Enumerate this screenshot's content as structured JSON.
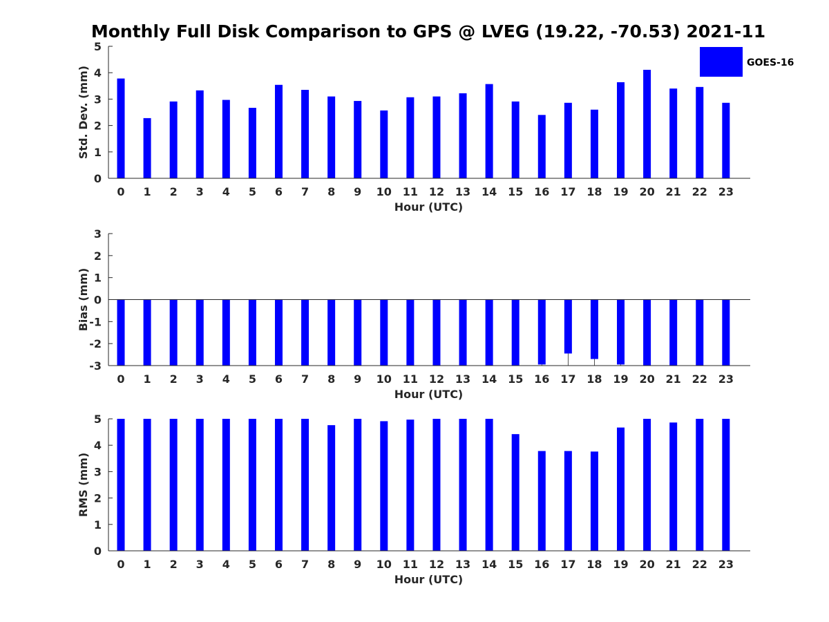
{
  "chart_data": {
    "title": "Monthly Full Disk Comparison to GPS @ LVEG (19.22, -70.53) 2021-11",
    "legend": {
      "entries": [
        "GOES-16"
      ],
      "placement": "top-right"
    },
    "colors": {
      "bar": "#0000ff",
      "axis": "#262626"
    },
    "grid": false,
    "panels": [
      {
        "type": "bar",
        "xlabel": "Hour (UTC)",
        "ylabel": "Std. Dev. (mm)",
        "ylim": [
          0,
          5
        ],
        "yticks": [
          "0",
          "1",
          "2",
          "3",
          "4",
          "5"
        ],
        "categories": [
          "0",
          "1",
          "2",
          "3",
          "4",
          "5",
          "6",
          "7",
          "8",
          "9",
          "10",
          "11",
          "12",
          "13",
          "14",
          "15",
          "16",
          "17",
          "18",
          "19",
          "20",
          "21",
          "22",
          "23"
        ],
        "series": [
          {
            "name": "GOES-16",
            "values": [
              3.78,
              2.28,
              2.91,
              3.33,
              2.97,
              2.67,
              3.54,
              3.35,
              3.1,
              2.93,
              2.57,
              3.07,
              3.1,
              3.22,
              3.57,
              2.91,
              2.4,
              2.86,
              2.6,
              3.64,
              4.11,
              3.4,
              3.46,
              2.86
            ]
          }
        ]
      },
      {
        "type": "bar",
        "xlabel": "Hour (UTC)",
        "ylabel": "Bias (mm)",
        "ylim": [
          -3,
          3
        ],
        "yticks": [
          "-3",
          "-2",
          "-1",
          "0",
          "1",
          "2",
          "3"
        ],
        "categories": [
          "0",
          "1",
          "2",
          "3",
          "4",
          "5",
          "6",
          "7",
          "8",
          "9",
          "10",
          "11",
          "12",
          "13",
          "14",
          "15",
          "16",
          "17",
          "18",
          "19",
          "20",
          "21",
          "22",
          "23"
        ],
        "series": [
          {
            "name": "GOES-16",
            "values": [
              -3,
              -3,
              -3,
              -3,
              -3,
              -3,
              -3,
              -3,
              -3,
              -3,
              -3,
              -3,
              -3,
              -3,
              -3,
              -3,
              -2.95,
              -2.45,
              -2.7,
              -2.95,
              -3,
              -3,
              -3,
              -3
            ]
          }
        ]
      },
      {
        "type": "bar",
        "xlabel": "Hour (UTC)",
        "ylabel": "RMS (mm)",
        "ylim": [
          0,
          5
        ],
        "yticks": [
          "0",
          "1",
          "2",
          "3",
          "4",
          "5"
        ],
        "categories": [
          "0",
          "1",
          "2",
          "3",
          "4",
          "5",
          "6",
          "7",
          "8",
          "9",
          "10",
          "11",
          "12",
          "13",
          "14",
          "15",
          "16",
          "17",
          "18",
          "19",
          "20",
          "21",
          "22",
          "23"
        ],
        "series": [
          {
            "name": "GOES-16",
            "values": [
              5,
              5,
              5,
              5,
              5,
              5,
              5,
              5,
              4.76,
              5,
              4.91,
              4.97,
              5,
              5,
              5,
              4.42,
              3.78,
              3.78,
              3.76,
              4.67,
              5,
              4.86,
              5,
              5
            ]
          }
        ]
      }
    ]
  }
}
